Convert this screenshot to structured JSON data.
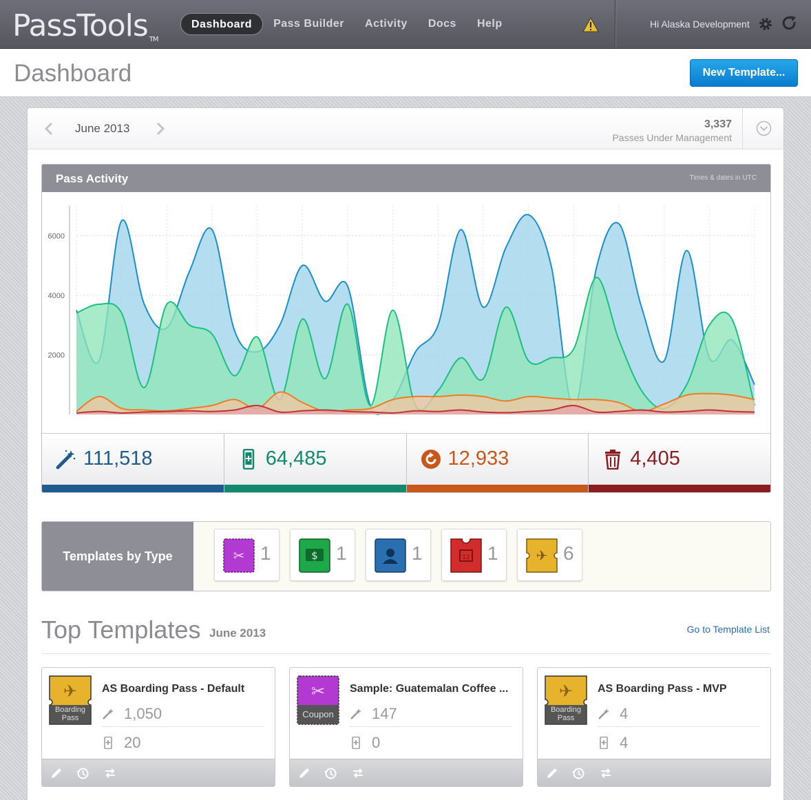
{
  "app": {
    "logo": "PassTools",
    "logo_tm": "TM",
    "greeting": "Hi Alaska Development"
  },
  "nav": [
    "Dashboard",
    "Pass Builder",
    "Activity",
    "Docs",
    "Help"
  ],
  "header": {
    "title": "Dashboard",
    "new_template_label": "New Template..."
  },
  "period": {
    "month": "June 2013",
    "passes_count": "3,337",
    "passes_label": "Passes Under Management"
  },
  "activity": {
    "title": "Pass Activity",
    "note": "Times & dates in UTC"
  },
  "colors": {
    "blue": "#1f5b8f",
    "green": "#12896c",
    "orange": "#d86a1a",
    "red": "#8b1d1f",
    "accent": "#0a7ccd"
  },
  "chart_data": {
    "type": "area",
    "title": "",
    "xlabel": "",
    "ylabel": "",
    "ylim": [
      0,
      7000
    ],
    "y_ticks": [
      2000,
      4000,
      6000
    ],
    "grid": true,
    "x": [
      1,
      2,
      3,
      4,
      5,
      6,
      7,
      8,
      9,
      10,
      11,
      12,
      13,
      14,
      15,
      16,
      17,
      18,
      19,
      20,
      21,
      22,
      23,
      24,
      25,
      26,
      27,
      28,
      29,
      30,
      31
    ],
    "series": [
      {
        "name": "",
        "color": "#1c8fc9",
        "fill": "#9fd3ea",
        "values": [
          3500,
          1800,
          6500,
          3700,
          2900,
          4800,
          6200,
          2800,
          2100,
          3000,
          5000,
          3800,
          4300,
          300,
          500,
          2100,
          3000,
          6200,
          3600,
          5600,
          6700,
          5000,
          200,
          4900,
          6400,
          3600,
          1800,
          5500,
          1900,
          2500,
          1000
        ]
      },
      {
        "name": "",
        "color": "#1bc07e",
        "fill": "#8fe5b8",
        "values": [
          3400,
          3700,
          3400,
          900,
          3700,
          3000,
          2700,
          1300,
          2600,
          500,
          3200,
          1200,
          3700,
          300,
          3500,
          300,
          800,
          1900,
          1200,
          3600,
          1800,
          1900,
          2200,
          4600,
          2500,
          800,
          200,
          1000,
          3000,
          3200,
          300
        ]
      },
      {
        "name": "",
        "color": "#ef7c24",
        "fill": "#f3c6a0",
        "values": [
          100,
          600,
          200,
          150,
          120,
          200,
          300,
          500,
          200,
          750,
          400,
          100,
          150,
          200,
          500,
          600,
          600,
          650,
          600,
          450,
          600,
          550,
          500,
          500,
          400,
          100,
          350,
          650,
          700,
          650,
          500
        ]
      },
      {
        "name": "",
        "color": "#c0303a",
        "fill": "#e7a4a8",
        "values": [
          50,
          100,
          50,
          80,
          100,
          120,
          100,
          150,
          300,
          80,
          120,
          150,
          100,
          80,
          50,
          120,
          100,
          150,
          80,
          60,
          100,
          150,
          300,
          80,
          100,
          150,
          80,
          100,
          150,
          100,
          80
        ]
      }
    ]
  },
  "stats": [
    {
      "icon": "magic-wand-icon",
      "value": "111,518",
      "color": "#1f5b8f"
    },
    {
      "icon": "phone-icon",
      "value": "64,485",
      "color": "#12896c"
    },
    {
      "icon": "refresh-icon",
      "value": "12,933",
      "color": "#c8581a"
    },
    {
      "icon": "trash-icon",
      "value": "4,405",
      "color": "#8b1d1f"
    }
  ],
  "templates_by_type": {
    "label": "Templates by Type",
    "types": [
      {
        "icon": "coupon-icon",
        "count": "1",
        "color": "#b23ad2"
      },
      {
        "icon": "store-card-icon",
        "count": "1",
        "color": "#1fa84a"
      },
      {
        "icon": "generic-pass-icon",
        "count": "1",
        "color": "#2a6fb0"
      },
      {
        "icon": "event-ticket-icon",
        "count": "1",
        "color": "#d32c2c"
      },
      {
        "icon": "boarding-pass-icon",
        "count": "6",
        "color": "#e8b32c"
      }
    ]
  },
  "top_templates": {
    "title": "Top Templates",
    "month": "June 2013",
    "link": "Go to Template List",
    "cards": [
      {
        "name": "AS Boarding Pass - Default",
        "type_label_1": "Boarding",
        "type_label_2": "Pass",
        "installs": "1,050",
        "devices": "20",
        "badge_color": "#e8b32c",
        "badge": "boarding-pass-icon"
      },
      {
        "name": "Sample: Guatemalan Coffee ...",
        "type_label_1": "Coupon",
        "type_label_2": "",
        "installs": "147",
        "devices": "0",
        "badge_color": "#b23ad2",
        "badge": "coupon-icon"
      },
      {
        "name": "AS Boarding Pass - MVP",
        "type_label_1": "Boarding",
        "type_label_2": "Pass",
        "installs": "4",
        "devices": "4",
        "badge_color": "#e8b32c",
        "badge": "boarding-pass-icon"
      }
    ]
  }
}
